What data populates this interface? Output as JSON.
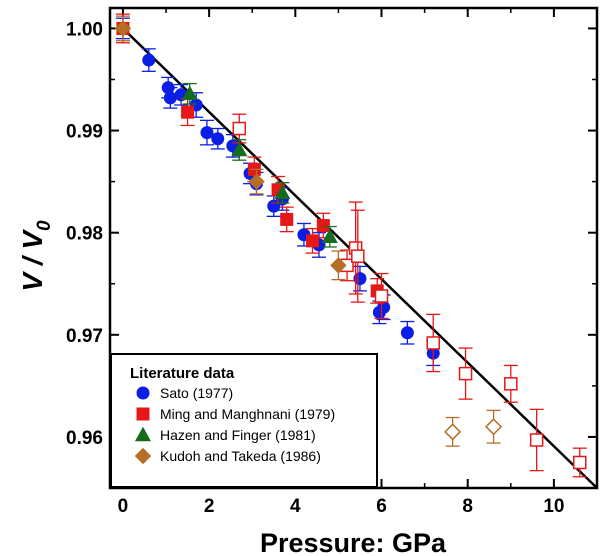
{
  "chart_data": {
    "type": "scatter",
    "xlabel": "Pressure: GPa",
    "ylabel_main": "V / V",
    "ylabel_sub": "0",
    "xlim": [
      -0.3,
      11
    ],
    "ylim": [
      0.955,
      1.002
    ],
    "xticks": [
      "0",
      "2",
      "4",
      "6",
      "8",
      "10"
    ],
    "xtick_values": [
      0,
      2,
      4,
      6,
      8,
      10
    ],
    "yticks": [
      "0.96",
      "0.97",
      "0.98",
      "0.99",
      "1.00"
    ],
    "ytick_values": [
      0.96,
      0.97,
      0.98,
      0.99,
      1.0
    ],
    "fit_line": {
      "x": [
        0,
        11
      ],
      "y": [
        1.0,
        0.955
      ]
    },
    "legend": {
      "title": "Literature data",
      "position": "bottom-left",
      "entries": [
        {
          "label": "Sato (1977)",
          "marker": "circle",
          "color": "#0a1ee6"
        },
        {
          "label": "Ming and Manghnani (1979)",
          "marker": "square",
          "color": "#e51717"
        },
        {
          "label": "Hazen and Finger (1981)",
          "marker": "triangle",
          "color": "#156b1e"
        },
        {
          "label": "Kudoh and Takeda (1986)",
          "marker": "diamond",
          "color": "#b56e25"
        }
      ]
    },
    "series": [
      {
        "name": "Sato (1977)",
        "marker": "circle",
        "color": "#0a1ee6",
        "filled": true,
        "points": [
          [
            0.0,
            1.0,
            0.001
          ],
          [
            0.6,
            0.9969,
            0.0011
          ],
          [
            1.05,
            0.9942,
            0.001
          ],
          [
            1.1,
            0.9932,
            0.001
          ],
          [
            1.35,
            0.9935,
            0.001
          ],
          [
            1.7,
            0.9925,
            0.0012
          ],
          [
            1.95,
            0.9898,
            0.0012
          ],
          [
            2.2,
            0.9892,
            0.001
          ],
          [
            2.55,
            0.9885,
            0.0011
          ],
          [
            2.95,
            0.9858,
            0.001
          ],
          [
            3.1,
            0.9848,
            0.0011
          ],
          [
            3.5,
            0.9826,
            0.001
          ],
          [
            3.7,
            0.9833,
            0.0011
          ],
          [
            4.2,
            0.9798,
            0.0011
          ],
          [
            4.55,
            0.9788,
            0.0012
          ],
          [
            5.5,
            0.9755,
            0.0012
          ],
          [
            5.95,
            0.9722,
            0.0011
          ],
          [
            6.05,
            0.9727,
            0.0012
          ],
          [
            6.6,
            0.9702,
            0.0011
          ],
          [
            7.2,
            0.9682,
            0.0012
          ]
        ]
      },
      {
        "name": "Ming and Manghnani (1979)",
        "marker": "square",
        "color": "#e51717",
        "filled": true,
        "points": [
          [
            0.0,
            1.0,
            0.0014
          ],
          [
            1.5,
            0.9918,
            0.0013
          ],
          [
            3.05,
            0.9862,
            0.0012
          ],
          [
            3.6,
            0.9842,
            0.0013
          ],
          [
            3.8,
            0.9813,
            0.0012
          ],
          [
            4.4,
            0.9792,
            0.0012
          ],
          [
            4.65,
            0.9807,
            0.0012
          ],
          [
            5.9,
            0.9743,
            0.0012
          ]
        ]
      },
      {
        "name": "Ming and Manghnani (1979) open",
        "marker": "square",
        "color": "#e51717",
        "filled": false,
        "points": [
          [
            2.7,
            0.9902,
            0.0014
          ],
          [
            5.2,
            0.9768,
            0.0015
          ],
          [
            5.4,
            0.9785,
            0.0045
          ],
          [
            5.45,
            0.9777,
            0.0045
          ],
          [
            6.0,
            0.9738,
            0.0022
          ],
          [
            7.2,
            0.9692,
            0.0028
          ],
          [
            7.95,
            0.9662,
            0.0025
          ],
          [
            9.0,
            0.9652,
            0.0018
          ],
          [
            9.6,
            0.9597,
            0.003
          ],
          [
            10.6,
            0.9575,
            0.0014
          ]
        ]
      },
      {
        "name": "Hazen and Finger (1981)",
        "marker": "triangle",
        "color": "#156b1e",
        "filled": true,
        "points": [
          [
            1.55,
            0.9936,
            0.001
          ],
          [
            2.7,
            0.9881,
            0.001
          ],
          [
            3.7,
            0.9839,
            0.001
          ],
          [
            4.8,
            0.9796,
            0.001
          ]
        ]
      },
      {
        "name": "Kudoh and Takeda (1986)",
        "marker": "diamond",
        "color": "#b56e25",
        "filled": true,
        "points": [
          [
            0.0,
            1.0,
            0.0012
          ],
          [
            3.1,
            0.985,
            0.0012
          ],
          [
            5.0,
            0.9768,
            0.0014
          ]
        ]
      },
      {
        "name": "Kudoh and Takeda (1986) open",
        "marker": "diamond",
        "color": "#b56e25",
        "filled": false,
        "points": [
          [
            7.65,
            0.9605,
            0.0014
          ],
          [
            8.6,
            0.961,
            0.0016
          ]
        ]
      }
    ]
  }
}
